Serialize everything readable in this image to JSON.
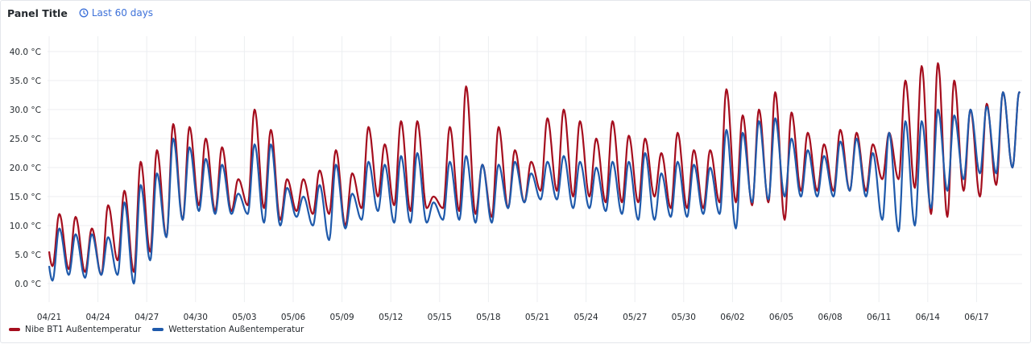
{
  "panel": {
    "title": "Panel Title",
    "time_range": "Last 60 days",
    "time_icon": "clock-icon"
  },
  "legend": [
    {
      "label": "Nibe BT1 Außentemperatur",
      "color": "#a50e1e"
    },
    {
      "label": "Wetterstation Außentemperatur",
      "color": "#1f5aab"
    }
  ],
  "chart_data": {
    "type": "line",
    "title": "Panel Title",
    "xlabel": "",
    "ylabel": "",
    "grid": true,
    "legend_placement": "bottom-left",
    "yunit": "°C",
    "ylim": [
      -4,
      44
    ],
    "y_ticks": [
      0,
      5,
      10,
      15,
      20,
      25,
      30,
      35,
      40
    ],
    "y_tick_labels": [
      "0.0 °C",
      "5.0 °C",
      "10.0 °C",
      "15.0 °C",
      "20.0 °C",
      "25.0 °C",
      "30.0 °C",
      "35.0 °C",
      "40.0 °C"
    ],
    "x_ticks": [
      "04/21",
      "04/24",
      "04/27",
      "04/30",
      "05/03",
      "05/06",
      "05/09",
      "05/12",
      "05/15",
      "05/18",
      "05/21",
      "05/24",
      "05/27",
      "05/30",
      "06/02",
      "06/05",
      "06/08",
      "06/11",
      "06/14",
      "06/17"
    ],
    "x_dates": [
      "04/21",
      "04/22",
      "04/23",
      "04/24",
      "04/25",
      "04/26",
      "04/27",
      "04/28",
      "04/29",
      "04/30",
      "05/01",
      "05/02",
      "05/03",
      "05/04",
      "05/05",
      "05/06",
      "05/07",
      "05/08",
      "05/09",
      "05/10",
      "05/11",
      "05/12",
      "05/13",
      "05/14",
      "05/15",
      "05/16",
      "05/17",
      "05/18",
      "05/19",
      "05/20",
      "05/21",
      "05/22",
      "05/23",
      "05/24",
      "05/25",
      "05/26",
      "05/27",
      "05/28",
      "05/29",
      "05/30",
      "05/31",
      "06/01",
      "06/02",
      "06/03",
      "06/04",
      "06/05",
      "06/06",
      "06/07",
      "06/08",
      "06/09",
      "06/10",
      "06/11",
      "06/12",
      "06/13",
      "06/14",
      "06/15",
      "06/16",
      "06/17",
      "06/18",
      "06/19"
    ],
    "series": [
      {
        "name": "Nibe BT1 Außentemperatur",
        "color": "#a50e1e",
        "daily_min": [
          3,
          2.5,
          2,
          1.5,
          4,
          2,
          5.5,
          8,
          11,
          13.5,
          12.5,
          12.5,
          13.5,
          13,
          11,
          12.5,
          12,
          12,
          10,
          13,
          15,
          13.5,
          12.5,
          13,
          13,
          12.5,
          12,
          11.5,
          13,
          14,
          16,
          16,
          15,
          15,
          14,
          14,
          14,
          15,
          13,
          13,
          13,
          14,
          14,
          13.5,
          14,
          11,
          16,
          16,
          16,
          16,
          16,
          18,
          18,
          16.5,
          12,
          11.5,
          16,
          15,
          17,
          20
        ],
        "daily_max": [
          12,
          11.5,
          9.5,
          13.5,
          16,
          21,
          23,
          27.5,
          27,
          25,
          23.5,
          18,
          30,
          26.5,
          18,
          18,
          19.5,
          23,
          19,
          27,
          24,
          28,
          28,
          15,
          27,
          34,
          20.5,
          27,
          23,
          21,
          28.5,
          30,
          28,
          25,
          28,
          25.5,
          25,
          22.5,
          26,
          23,
          23,
          33.5,
          29,
          30,
          33,
          29.5,
          26,
          24,
          26.5,
          26,
          24,
          26,
          35,
          37.5,
          38,
          35,
          30,
          31,
          33,
          33
        ]
      },
      {
        "name": "Wetterstation Außentemperatur",
        "color": "#1f5aab",
        "daily_min": [
          0.5,
          1.5,
          1,
          1.5,
          1.5,
          0,
          4,
          8,
          11,
          12.5,
          12,
          12,
          12,
          10.5,
          10,
          11.5,
          10,
          7.5,
          9.5,
          11,
          12.5,
          10.5,
          10.5,
          10.5,
          11,
          11,
          10.5,
          10.5,
          13,
          14,
          14.5,
          14.5,
          13,
          13,
          12.5,
          12,
          11,
          11,
          11.5,
          11.5,
          12,
          12,
          9.5,
          14,
          14.5,
          15,
          15,
          15,
          15,
          16,
          15,
          11,
          9,
          10,
          13,
          16,
          18,
          19,
          19,
          20
        ],
        "daily_max": [
          9.5,
          8.5,
          8.5,
          8,
          14,
          17,
          19,
          25,
          23.5,
          21.5,
          20.5,
          15.5,
          24,
          24,
          16.5,
          15,
          17,
          20.5,
          15.5,
          21,
          20.5,
          22,
          22.5,
          14,
          21,
          22,
          20.5,
          20.5,
          21,
          19,
          21,
          22,
          21,
          20,
          21,
          21,
          22.5,
          19,
          21,
          20.5,
          20,
          26.5,
          26,
          28,
          28.5,
          25,
          23,
          22,
          24.5,
          25,
          22.5,
          26,
          28,
          28,
          30,
          29,
          30,
          30.5,
          33,
          33
        ]
      }
    ]
  }
}
